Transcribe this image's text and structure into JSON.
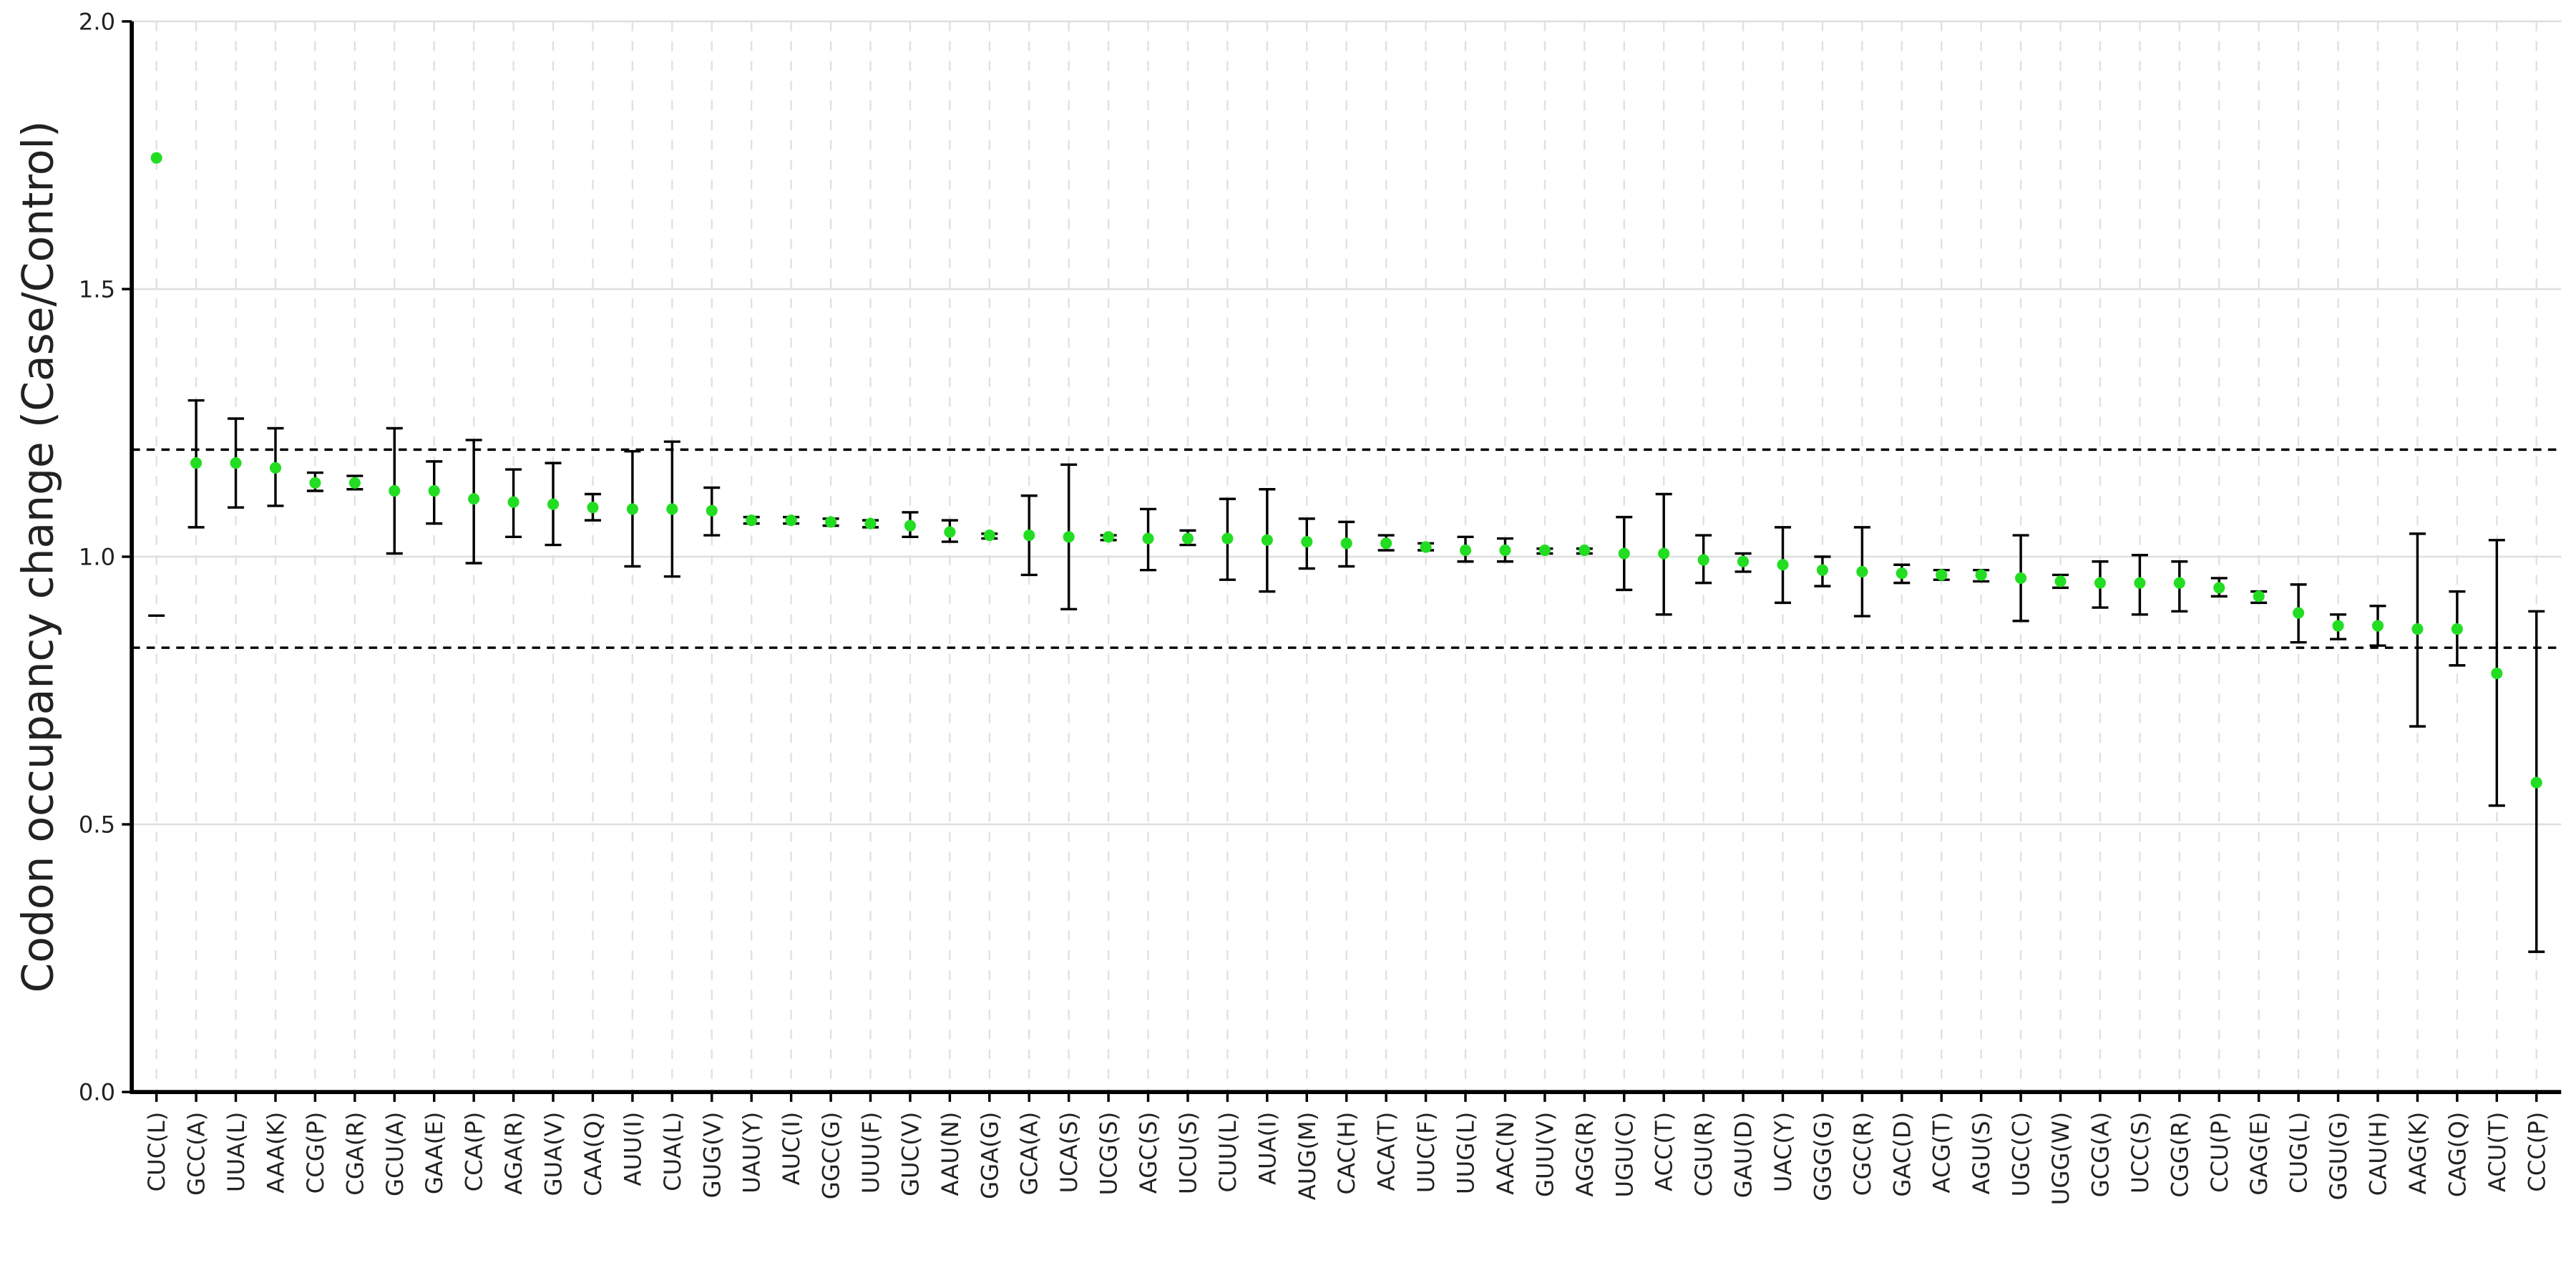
{
  "chart_data": {
    "type": "errorbar",
    "y_label": "Codon occupancy change (Case/Control)",
    "categories": [
      "CUC(L)",
      "GCC(A)",
      "UUA(L)",
      "AAA(K)",
      "CCG(P)",
      "CGA(R)",
      "GCU(A)",
      "GAA(E)",
      "CCA(P)",
      "AGA(R)",
      "GUA(V)",
      "CAA(Q)",
      "AUU(I)",
      "CUA(L)",
      "GUG(V)",
      "UAU(Y)",
      "AUC(I)",
      "GGC(G)",
      "UUU(F)",
      "GUC(V)",
      "AAU(N)",
      "GGA(G)",
      "GCA(A)",
      "UCA(S)",
      "UCG(S)",
      "AGC(S)",
      "UCU(S)",
      "CUU(L)",
      "AUA(I)",
      "AUG(M)",
      "CAC(H)",
      "ACA(T)",
      "UUC(F)",
      "UUG(L)",
      "AAC(N)",
      "GUU(V)",
      "AGG(R)",
      "UGU(C)",
      "ACC(T)",
      "CGU(R)",
      "GAU(D)",
      "UAC(Y)",
      "GGG(G)",
      "CGC(R)",
      "GAC(D)",
      "ACG(T)",
      "AGU(S)",
      "UGC(C)",
      "UGG(W)",
      "GCG(A)",
      "UCC(S)",
      "CGG(R)",
      "CCU(P)",
      "GAG(E)",
      "CUG(L)",
      "GGU(G)",
      "CAU(H)",
      "AAG(K)",
      "CAG(Q)",
      "ACU(T)",
      "CCC(P)"
    ],
    "series": [
      {
        "color": "#22dd22",
        "values": [
          1.745,
          1.175,
          1.175,
          1.166,
          1.138,
          1.138,
          1.123,
          1.123,
          1.108,
          1.102,
          1.098,
          1.092,
          1.089,
          1.089,
          1.086,
          1.068,
          1.068,
          1.065,
          1.062,
          1.058,
          1.046,
          1.04,
          1.04,
          1.037,
          1.037,
          1.034,
          1.034,
          1.034,
          1.031,
          1.028,
          1.025,
          1.025,
          1.018,
          1.012,
          1.012,
          1.012,
          1.012,
          1.006,
          1.006,
          0.994,
          0.991,
          0.985,
          0.975,
          0.972,
          0.969,
          0.966,
          0.966,
          0.96,
          0.954,
          0.951,
          0.951,
          0.951,
          0.942,
          0.926,
          0.895,
          0.871,
          0.871,
          0.865,
          0.865,
          0.782,
          0.578
        ],
        "upper": [
          null,
          1.292,
          1.258,
          1.24,
          1.157,
          1.151,
          1.24,
          1.178,
          1.218,
          1.163,
          1.175,
          1.117,
          1.197,
          1.215,
          1.129,
          1.074,
          1.074,
          1.071,
          1.068,
          1.083,
          1.068,
          1.043,
          1.114,
          1.172,
          1.04,
          1.089,
          1.049,
          1.108,
          1.126,
          1.071,
          1.065,
          1.04,
          1.025,
          1.037,
          1.034,
          1.015,
          1.015,
          1.074,
          1.117,
          1.04,
          1.006,
          1.055,
          1.0,
          1.055,
          0.985,
          0.975,
          0.975,
          1.04,
          0.966,
          0.991,
          1.003,
          0.991,
          0.96,
          0.935,
          0.948,
          0.892,
          0.908,
          1.043,
          0.935,
          1.031,
          0.898
        ],
        "lower": [
          0.89,
          1.055,
          1.092,
          1.095,
          1.123,
          1.126,
          1.006,
          1.062,
          0.988,
          1.037,
          1.022,
          1.068,
          0.982,
          0.963,
          1.04,
          1.062,
          1.062,
          1.058,
          1.055,
          1.037,
          1.028,
          1.034,
          0.966,
          0.902,
          1.031,
          0.975,
          1.022,
          0.957,
          0.935,
          0.978,
          0.982,
          1.012,
          1.012,
          0.991,
          0.991,
          1.006,
          1.006,
          0.938,
          0.892,
          0.951,
          0.972,
          0.914,
          0.945,
          0.889,
          0.951,
          0.957,
          0.954,
          0.88,
          0.942,
          0.905,
          0.892,
          0.898,
          0.926,
          0.914,
          0.84,
          0.846,
          0.834,
          0.683,
          0.797,
          0.535,
          0.262
        ]
      }
    ],
    "reference_lines": [
      1.2,
      0.83
    ],
    "ylim": [
      0,
      2
    ],
    "yticks": [
      {
        "value": 0,
        "label": "0.0"
      },
      {
        "value": 0.5,
        "label": "0.5"
      },
      {
        "value": 1,
        "label": "1.0"
      },
      {
        "value": 1.5,
        "label": "1.5"
      },
      {
        "value": 2,
        "label": "2.0"
      }
    ],
    "grid": true
  }
}
